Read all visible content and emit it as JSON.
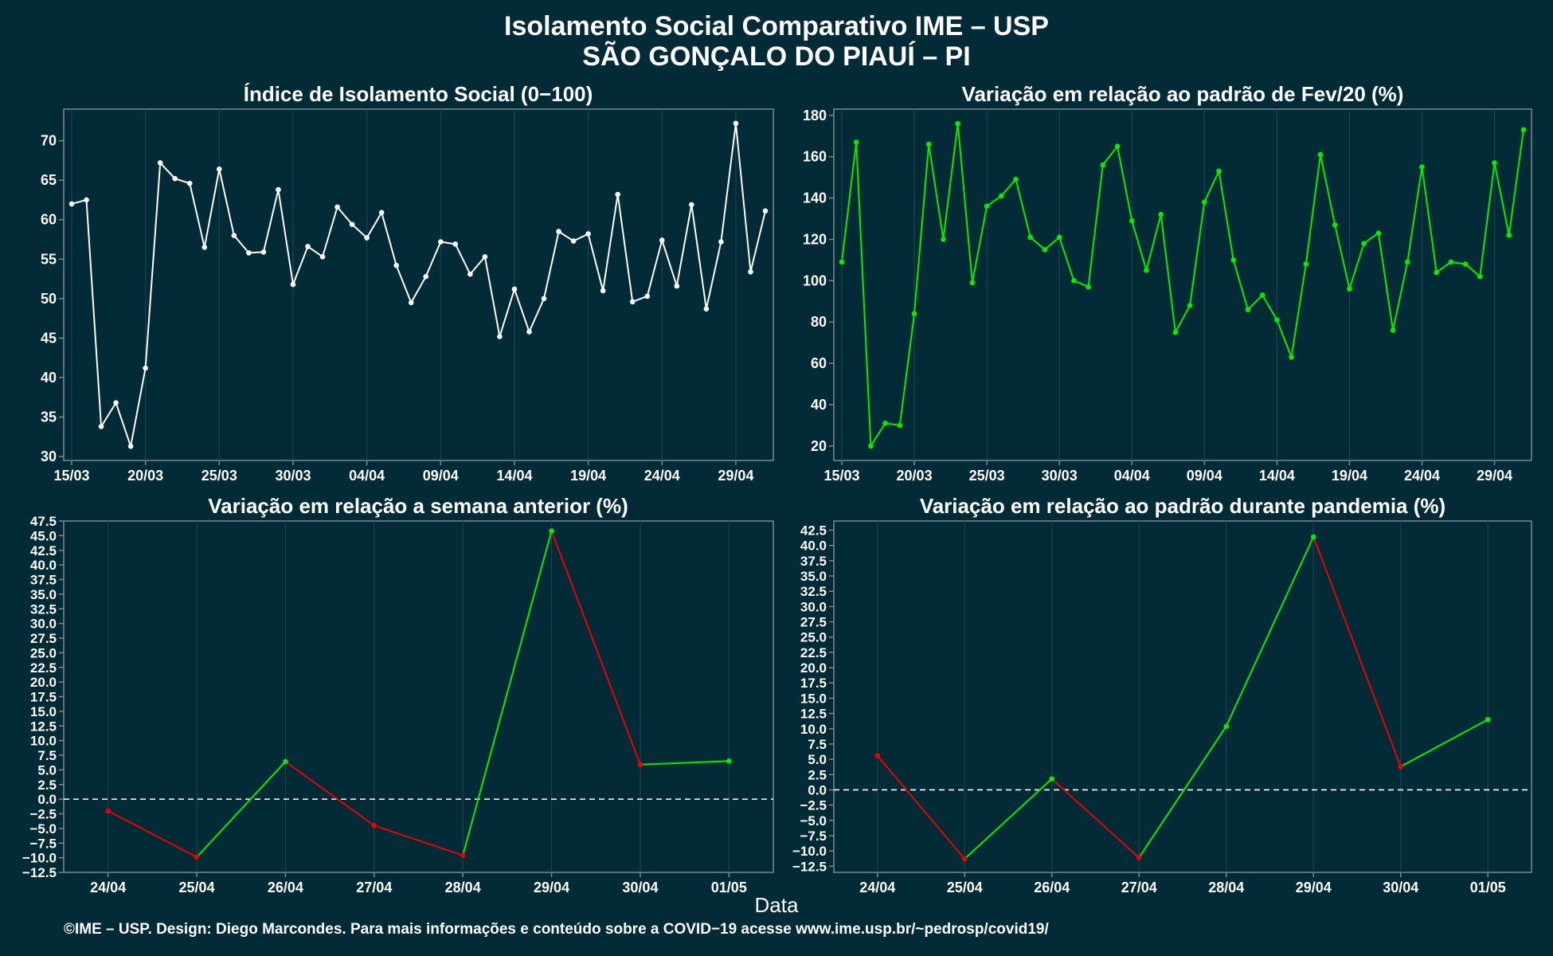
{
  "title_line1": "Isolamento Social Comparativo IME – USP",
  "title_line2": "SÃO GONÇALO DO PIAUÍ – PI",
  "xlabel": "Data",
  "caption": "©IME – USP. Design: Diego Marcondes. Para mais informações e conteúdo sobre a COVID−19 acesse www.ime.usp.br/~pedrosp/covid19/",
  "colors": {
    "background": "#022b37",
    "white": "#ffffff",
    "green": "#00ee00",
    "red": "#ee0000",
    "grid": "#1c4250",
    "frame": "#7b8a90"
  },
  "chart_data": [
    {
      "type": "line",
      "title": "Índice de Isolamento Social (0−100)",
      "color": "#ffffff",
      "ylim": [
        29.5,
        74
      ],
      "yticks": [
        30,
        35,
        40,
        45,
        50,
        55,
        60,
        65,
        70
      ],
      "xticks": [
        "15/03",
        "20/03",
        "25/03",
        "30/03",
        "04/04",
        "09/04",
        "14/04",
        "19/04",
        "24/04",
        "29/04"
      ],
      "start_date": "2020-03-15",
      "values": [
        62.0,
        62.5,
        33.8,
        36.8,
        31.3,
        41.2,
        67.2,
        65.2,
        64.6,
        56.5,
        66.4,
        58.0,
        55.8,
        55.9,
        63.8,
        51.8,
        56.6,
        55.3,
        61.6,
        59.4,
        57.7,
        60.9,
        54.2,
        49.5,
        52.8,
        57.2,
        56.9,
        53.1,
        55.3,
        45.2,
        51.2,
        45.8,
        50.0,
        58.5,
        57.3,
        58.2,
        51.0,
        63.2,
        49.6,
        50.3,
        57.4,
        51.6,
        61.9,
        48.7,
        57.2,
        72.2,
        53.4,
        61.1
      ]
    },
    {
      "type": "line",
      "title": "Variação em relação ao padrão de Fev/20 (%)",
      "color": "#00ee00",
      "ylim": [
        13,
        183
      ],
      "yticks": [
        20,
        40,
        60,
        80,
        100,
        120,
        140,
        160,
        180
      ],
      "xticks": [
        "15/03",
        "20/03",
        "25/03",
        "30/03",
        "04/04",
        "09/04",
        "14/04",
        "19/04",
        "24/04",
        "29/04"
      ],
      "start_date": "2020-03-15",
      "values": [
        109,
        167,
        20,
        31,
        30,
        84,
        166,
        120,
        176,
        99,
        136,
        141,
        149,
        121,
        115,
        121,
        100,
        97,
        156,
        165,
        129,
        105,
        132,
        75,
        88,
        138,
        153,
        110,
        86,
        93,
        81,
        63,
        108,
        161,
        127,
        96,
        118,
        123,
        76,
        109,
        155,
        104,
        109,
        108,
        102,
        157,
        122,
        173
      ]
    },
    {
      "type": "line",
      "title": "Variação em relação a semana anterior (%)",
      "ylim": [
        -12.5,
        47.5
      ],
      "yticks": [
        -12.5,
        -10,
        -7.5,
        -5,
        -2.5,
        0,
        2.5,
        5,
        7.5,
        10,
        12.5,
        15,
        17.5,
        20,
        22.5,
        25,
        27.5,
        30,
        32.5,
        35,
        37.5,
        40,
        42.5,
        45,
        47.5
      ],
      "ytick_labels": [
        "−12.5",
        "−10.0",
        "−7.5",
        "−5.0",
        "−2.5",
        "0.0",
        "2.5",
        "5.0",
        "7.5",
        "10.0",
        "12.5",
        "15.0",
        "17.5",
        "20.0",
        "22.5",
        "25.0",
        "27.5",
        "30.0",
        "32.5",
        "35.0",
        "37.5",
        "40.0",
        "42.5",
        "45.0",
        "47.5"
      ],
      "categories": [
        "24/04",
        "25/04",
        "26/04",
        "27/04",
        "28/04",
        "29/04",
        "30/04",
        "01/05"
      ],
      "values": [
        -2.0,
        -9.9,
        6.4,
        -4.5,
        -9.6,
        45.8,
        5.9,
        6.5
      ],
      "reference_line": 0
    },
    {
      "type": "line",
      "title": "Variação em relação ao padrão durante pandemia (%)",
      "ylim": [
        -13.5,
        44
      ],
      "yticks": [
        -12.5,
        -10,
        -7.5,
        -5,
        -2.5,
        0,
        2.5,
        5,
        7.5,
        10,
        12.5,
        15,
        17.5,
        20,
        22.5,
        25,
        27.5,
        30,
        32.5,
        35,
        37.5,
        40,
        42.5
      ],
      "ytick_labels": [
        "−12.5",
        "−10.0",
        "−7.5",
        "−5.0",
        "−2.5",
        "0.0",
        "2.5",
        "5.0",
        "7.5",
        "10.0",
        "12.5",
        "15.0",
        "17.5",
        "20.0",
        "22.5",
        "25.0",
        "27.5",
        "30.0",
        "32.5",
        "35.0",
        "37.5",
        "40.0",
        "42.5"
      ],
      "categories": [
        "24/04",
        "25/04",
        "26/04",
        "27/04",
        "28/04",
        "29/04",
        "30/04",
        "01/05"
      ],
      "values": [
        5.6,
        -11.3,
        1.8,
        -11.1,
        10.4,
        41.4,
        3.8,
        11.5
      ],
      "reference_line": 0
    }
  ]
}
